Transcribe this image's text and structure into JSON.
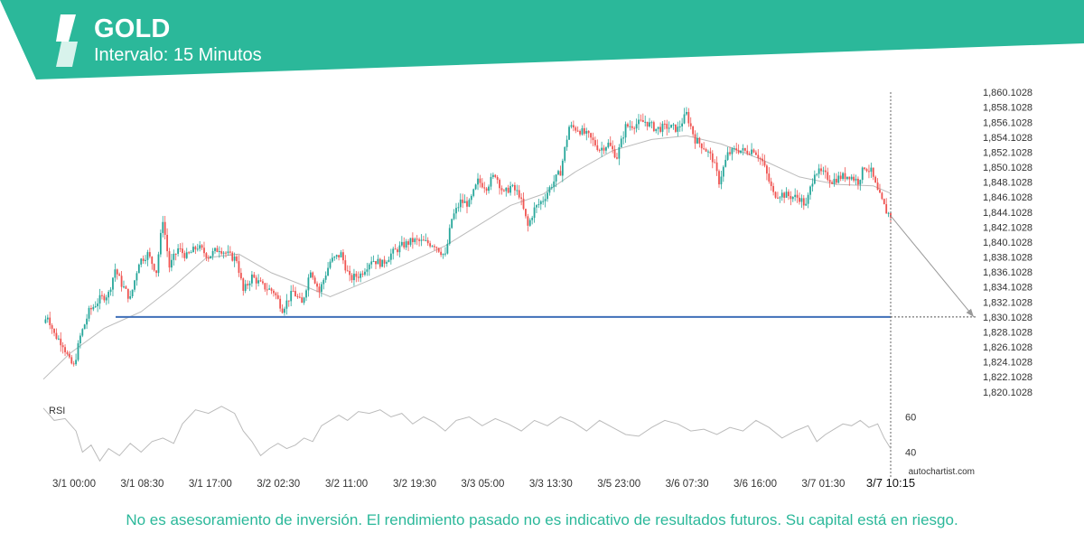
{
  "header": {
    "symbol": "GOLD",
    "interval_label": "Intervalo: 15 Minutos",
    "brand_color": "#2bb89a"
  },
  "chart_data": {
    "type": "candlestick",
    "y_ticks": [
      "1,860.1028",
      "1,858.1028",
      "1,856.1028",
      "1,854.1028",
      "1,852.1028",
      "1,850.1028",
      "1,848.1028",
      "1,846.1028",
      "1,844.1028",
      "1,842.1028",
      "1,840.1028",
      "1,838.1028",
      "1,836.1028",
      "1,834.1028",
      "1,832.1028",
      "1,830.1028",
      "1,828.1028",
      "1,826.1028",
      "1,824.1028",
      "1,822.1028",
      "1,820.1028"
    ],
    "ylim": [
      1819.6,
      1860.6
    ],
    "x_ticks": [
      "3/1 00:00",
      "3/1 08:30",
      "3/1 17:00",
      "3/2 02:30",
      "3/2 11:00",
      "3/2 19:30",
      "3/3 05:00",
      "3/3 13:30",
      "3/5 23:00",
      "3/6 07:30",
      "3/6 16:00",
      "3/7 01:30"
    ],
    "current_time_label": "3/7 10:15",
    "support_level": 1830.1028,
    "projection": {
      "from": 1843.6,
      "to": 1830.1028
    },
    "close_path": [
      [
        0,
        1829.3
      ],
      [
        2,
        1830.3
      ],
      [
        5,
        1827.8
      ],
      [
        9,
        1826.5
      ],
      [
        12,
        1824.2
      ],
      [
        14,
        1823.5
      ],
      [
        17,
        1827.5
      ],
      [
        21,
        1830.8
      ],
      [
        26,
        1832.5
      ],
      [
        30,
        1833.2
      ],
      [
        33,
        1836.5
      ],
      [
        36,
        1834.5
      ],
      [
        40,
        1832.5
      ],
      [
        44,
        1837.5
      ],
      [
        48,
        1838.5
      ],
      [
        52,
        1836.2
      ],
      [
        55,
        1843.2
      ],
      [
        58,
        1836.8
      ],
      [
        62,
        1839.2
      ],
      [
        66,
        1838.2
      ],
      [
        71,
        1839.5
      ],
      [
        76,
        1838.2
      ],
      [
        81,
        1839.3
      ],
      [
        86,
        1838.2
      ],
      [
        89,
        1837.8
      ],
      [
        92,
        1833.5
      ],
      [
        96,
        1835.5
      ],
      [
        101,
        1834.2
      ],
      [
        106,
        1833.5
      ],
      [
        110,
        1831.2
      ],
      [
        115,
        1833.5
      ],
      [
        119,
        1831.8
      ],
      [
        123,
        1836.5
      ],
      [
        127,
        1833.5
      ],
      [
        132,
        1837.5
      ],
      [
        137,
        1838.5
      ],
      [
        141,
        1835.2
      ],
      [
        146,
        1835.8
      ],
      [
        151,
        1837.8
      ],
      [
        156,
        1837.2
      ],
      [
        160,
        1838.5
      ],
      [
        165,
        1839.6
      ],
      [
        170,
        1840.3
      ],
      [
        175,
        1840.1
      ],
      [
        180,
        1839.8
      ],
      [
        185,
        1838.2
      ],
      [
        188,
        1843.2
      ],
      [
        192,
        1845.5
      ],
      [
        196,
        1845.2
      ],
      [
        200,
        1848.2
      ],
      [
        204,
        1847.5
      ],
      [
        208,
        1849.2
      ],
      [
        212,
        1846.5
      ],
      [
        215,
        1847.5
      ],
      [
        219,
        1846.5
      ],
      [
        223,
        1842.2
      ],
      [
        226,
        1844.5
      ],
      [
        230,
        1845.8
      ],
      [
        234,
        1847.8
      ],
      [
        238,
        1849.5
      ],
      [
        242,
        1855.5
      ],
      [
        246,
        1855.2
      ],
      [
        251,
        1854.2
      ],
      [
        256,
        1852.5
      ],
      [
        260,
        1853.2
      ],
      [
        264,
        1851.5
      ],
      [
        268,
        1855.5
      ],
      [
        272,
        1855.8
      ],
      [
        277,
        1856.2
      ],
      [
        282,
        1855.2
      ],
      [
        287,
        1855.5
      ],
      [
        292,
        1855.2
      ],
      [
        296,
        1857.2
      ],
      [
        300,
        1853.8
      ],
      [
        304,
        1852.8
      ],
      [
        308,
        1851.2
      ],
      [
        311,
        1848.2
      ],
      [
        315,
        1851.8
      ],
      [
        319,
        1852.5
      ],
      [
        323,
        1852.2
      ],
      [
        327,
        1852.5
      ],
      [
        331,
        1850.8
      ],
      [
        336,
        1846.5
      ],
      [
        340,
        1846.5
      ],
      [
        344,
        1846.2
      ],
      [
        348,
        1846.0
      ],
      [
        351,
        1844.9
      ],
      [
        355,
        1849.6
      ],
      [
        359,
        1849.2
      ],
      [
        363,
        1848.3
      ],
      [
        367,
        1848.8
      ],
      [
        371,
        1849.0
      ],
      [
        375,
        1848.2
      ],
      [
        378,
        1850.2
      ],
      [
        381,
        1849.5
      ],
      [
        384,
        1846.8
      ],
      [
        388,
        1844.2
      ],
      [
        390,
        1843.6
      ]
    ],
    "ma_path": [
      [
        0,
        1821.8
      ],
      [
        12,
        1825.2
      ],
      [
        28,
        1828.6
      ],
      [
        45,
        1830.8
      ],
      [
        60,
        1834.2
      ],
      [
        75,
        1838.0
      ],
      [
        90,
        1838.5
      ],
      [
        105,
        1836.0
      ],
      [
        118,
        1834.5
      ],
      [
        132,
        1832.8
      ],
      [
        150,
        1835.0
      ],
      [
        170,
        1837.6
      ],
      [
        185,
        1839.6
      ],
      [
        200,
        1842.3
      ],
      [
        215,
        1845.0
      ],
      [
        230,
        1846.5
      ],
      [
        245,
        1849.5
      ],
      [
        262,
        1852.3
      ],
      [
        280,
        1853.8
      ],
      [
        296,
        1854.3
      ],
      [
        312,
        1853.2
      ],
      [
        330,
        1851.2
      ],
      [
        348,
        1848.8
      ],
      [
        365,
        1847.8
      ],
      [
        382,
        1847.6
      ],
      [
        390,
        1846.6
      ]
    ],
    "rsi": {
      "label": "RSI",
      "ticks": [
        60,
        40
      ],
      "ylim": [
        30,
        70
      ],
      "path": [
        [
          0,
          65
        ],
        [
          5,
          58
        ],
        [
          10,
          59
        ],
        [
          15,
          52
        ],
        [
          18,
          40
        ],
        [
          22,
          44
        ],
        [
          26,
          35
        ],
        [
          30,
          42
        ],
        [
          35,
          38
        ],
        [
          40,
          45
        ],
        [
          45,
          40
        ],
        [
          50,
          46
        ],
        [
          55,
          48
        ],
        [
          60,
          45
        ],
        [
          64,
          56
        ],
        [
          70,
          64
        ],
        [
          76,
          62
        ],
        [
          82,
          66
        ],
        [
          88,
          62
        ],
        [
          92,
          52
        ],
        [
          96,
          46
        ],
        [
          100,
          38
        ],
        [
          104,
          42
        ],
        [
          108,
          45
        ],
        [
          112,
          42
        ],
        [
          116,
          44
        ],
        [
          120,
          48
        ],
        [
          124,
          46
        ],
        [
          128,
          55
        ],
        [
          132,
          58
        ],
        [
          136,
          61
        ],
        [
          140,
          58
        ],
        [
          145,
          63
        ],
        [
          150,
          62
        ],
        [
          155,
          64
        ],
        [
          160,
          60
        ],
        [
          165,
          62
        ],
        [
          170,
          56
        ],
        [
          175,
          60
        ],
        [
          180,
          57
        ],
        [
          185,
          52
        ],
        [
          190,
          58
        ],
        [
          196,
          60
        ],
        [
          202,
          55
        ],
        [
          208,
          59
        ],
        [
          214,
          56
        ],
        [
          220,
          52
        ],
        [
          226,
          58
        ],
        [
          232,
          55
        ],
        [
          238,
          60
        ],
        [
          244,
          57
        ],
        [
          250,
          52
        ],
        [
          256,
          58
        ],
        [
          262,
          54
        ],
        [
          268,
          50
        ],
        [
          274,
          49
        ],
        [
          280,
          54
        ],
        [
          286,
          58
        ],
        [
          292,
          56
        ],
        [
          298,
          52
        ],
        [
          304,
          53
        ],
        [
          310,
          50
        ],
        [
          316,
          54
        ],
        [
          322,
          52
        ],
        [
          328,
          58
        ],
        [
          334,
          54
        ],
        [
          340,
          48
        ],
        [
          346,
          52
        ],
        [
          352,
          55
        ],
        [
          356,
          46
        ],
        [
          360,
          50
        ],
        [
          364,
          53
        ],
        [
          368,
          56
        ],
        [
          372,
          55
        ],
        [
          376,
          58
        ],
        [
          380,
          54
        ],
        [
          384,
          56
        ],
        [
          387,
          48
        ],
        [
          390,
          42
        ]
      ]
    },
    "candle_up_color": "#26a69a",
    "candle_down_color": "#ef5350",
    "support_color": "#3f6fb8"
  },
  "watermark": "autochartist.com",
  "disclaimer": "No es asesoramiento de inversión. El rendimiento pasado no es indicativo de resultados futuros. Su capital está en riesgo."
}
